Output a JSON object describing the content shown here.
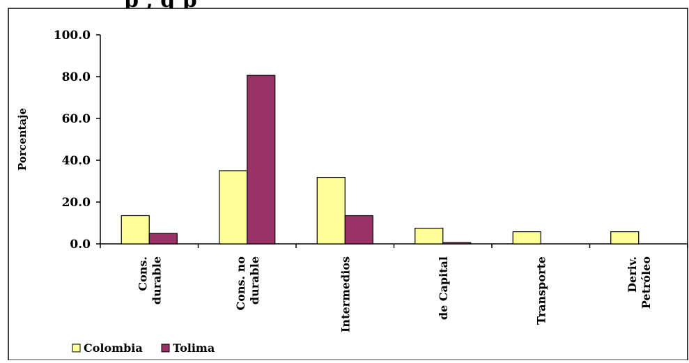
{
  "title_fragment": "p     , g  p",
  "chart_data": {
    "type": "bar",
    "title": "",
    "xlabel": "",
    "ylabel": "Porcentaje",
    "ylim": [
      0,
      100
    ],
    "yticks": [
      "0.0",
      "20.0",
      "40.0",
      "60.0",
      "80.0",
      "100.0"
    ],
    "grid": false,
    "legend_position": "bottom-left",
    "categories": [
      [
        "Cons.",
        "durable"
      ],
      [
        "Cons. no",
        "durable"
      ],
      [
        "Intermedios"
      ],
      [
        "de Capital"
      ],
      [
        "Transporte"
      ],
      [
        "Deriv.",
        "Petróleo"
      ]
    ],
    "series": [
      {
        "name": "Colombia",
        "color": "#ffff99",
        "values": [
          13.5,
          35.0,
          31.8,
          7.5,
          5.8,
          5.8
        ]
      },
      {
        "name": "Tolima",
        "color": "#993366",
        "values": [
          5.0,
          80.6,
          13.5,
          0.6,
          0,
          0
        ]
      }
    ]
  }
}
